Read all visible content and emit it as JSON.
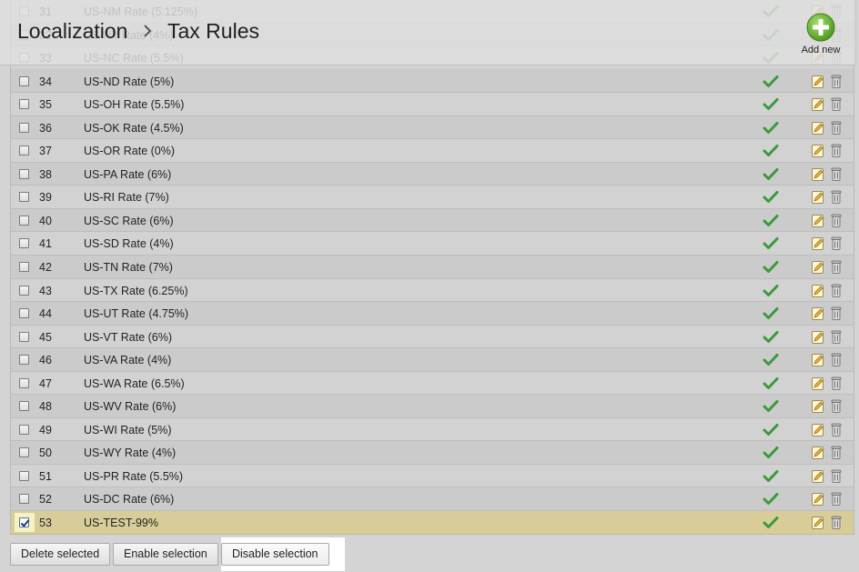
{
  "header": {
    "breadcrumb_parent": "Localization",
    "breadcrumb_current": "Tax Rules",
    "add_new_label": "Add new"
  },
  "colors": {
    "active_check": "#3a9a3a",
    "selected_row": "#d8cd98",
    "add_button": "#5fae2e"
  },
  "rows": [
    {
      "id": "31",
      "name": "US-NM Rate (5.125%)",
      "checked": false
    },
    {
      "id": "32",
      "name": "US-NY Rate (4%)",
      "checked": false
    },
    {
      "id": "33",
      "name": "US-NC Rate (5.5%)",
      "checked": false
    },
    {
      "id": "34",
      "name": "US-ND Rate (5%)",
      "checked": false
    },
    {
      "id": "35",
      "name": "US-OH Rate (5.5%)",
      "checked": false
    },
    {
      "id": "36",
      "name": "US-OK Rate (4.5%)",
      "checked": false
    },
    {
      "id": "37",
      "name": "US-OR Rate (0%)",
      "checked": false
    },
    {
      "id": "38",
      "name": "US-PA Rate (6%)",
      "checked": false
    },
    {
      "id": "39",
      "name": "US-RI Rate (7%)",
      "checked": false
    },
    {
      "id": "40",
      "name": "US-SC Rate (6%)",
      "checked": false
    },
    {
      "id": "41",
      "name": "US-SD Rate (4%)",
      "checked": false
    },
    {
      "id": "42",
      "name": "US-TN Rate (7%)",
      "checked": false
    },
    {
      "id": "43",
      "name": "US-TX Rate (6.25%)",
      "checked": false
    },
    {
      "id": "44",
      "name": "US-UT Rate (4.75%)",
      "checked": false
    },
    {
      "id": "45",
      "name": "US-VT Rate (6%)",
      "checked": false
    },
    {
      "id": "46",
      "name": "US-VA Rate (4%)",
      "checked": false
    },
    {
      "id": "47",
      "name": "US-WA Rate (6.5%)",
      "checked": false
    },
    {
      "id": "48",
      "name": "US-WV Rate (6%)",
      "checked": false
    },
    {
      "id": "49",
      "name": "US-WI Rate (5%)",
      "checked": false
    },
    {
      "id": "50",
      "name": "US-WY Rate (4%)",
      "checked": false
    },
    {
      "id": "51",
      "name": "US-PR Rate (5.5%)",
      "checked": false
    },
    {
      "id": "52",
      "name": "US-DC Rate (6%)",
      "checked": false
    },
    {
      "id": "53",
      "name": "US-TEST-99%",
      "checked": true
    }
  ],
  "footer": {
    "delete_label": "Delete selected",
    "enable_label": "Enable selection",
    "disable_label": "Disable selection"
  }
}
